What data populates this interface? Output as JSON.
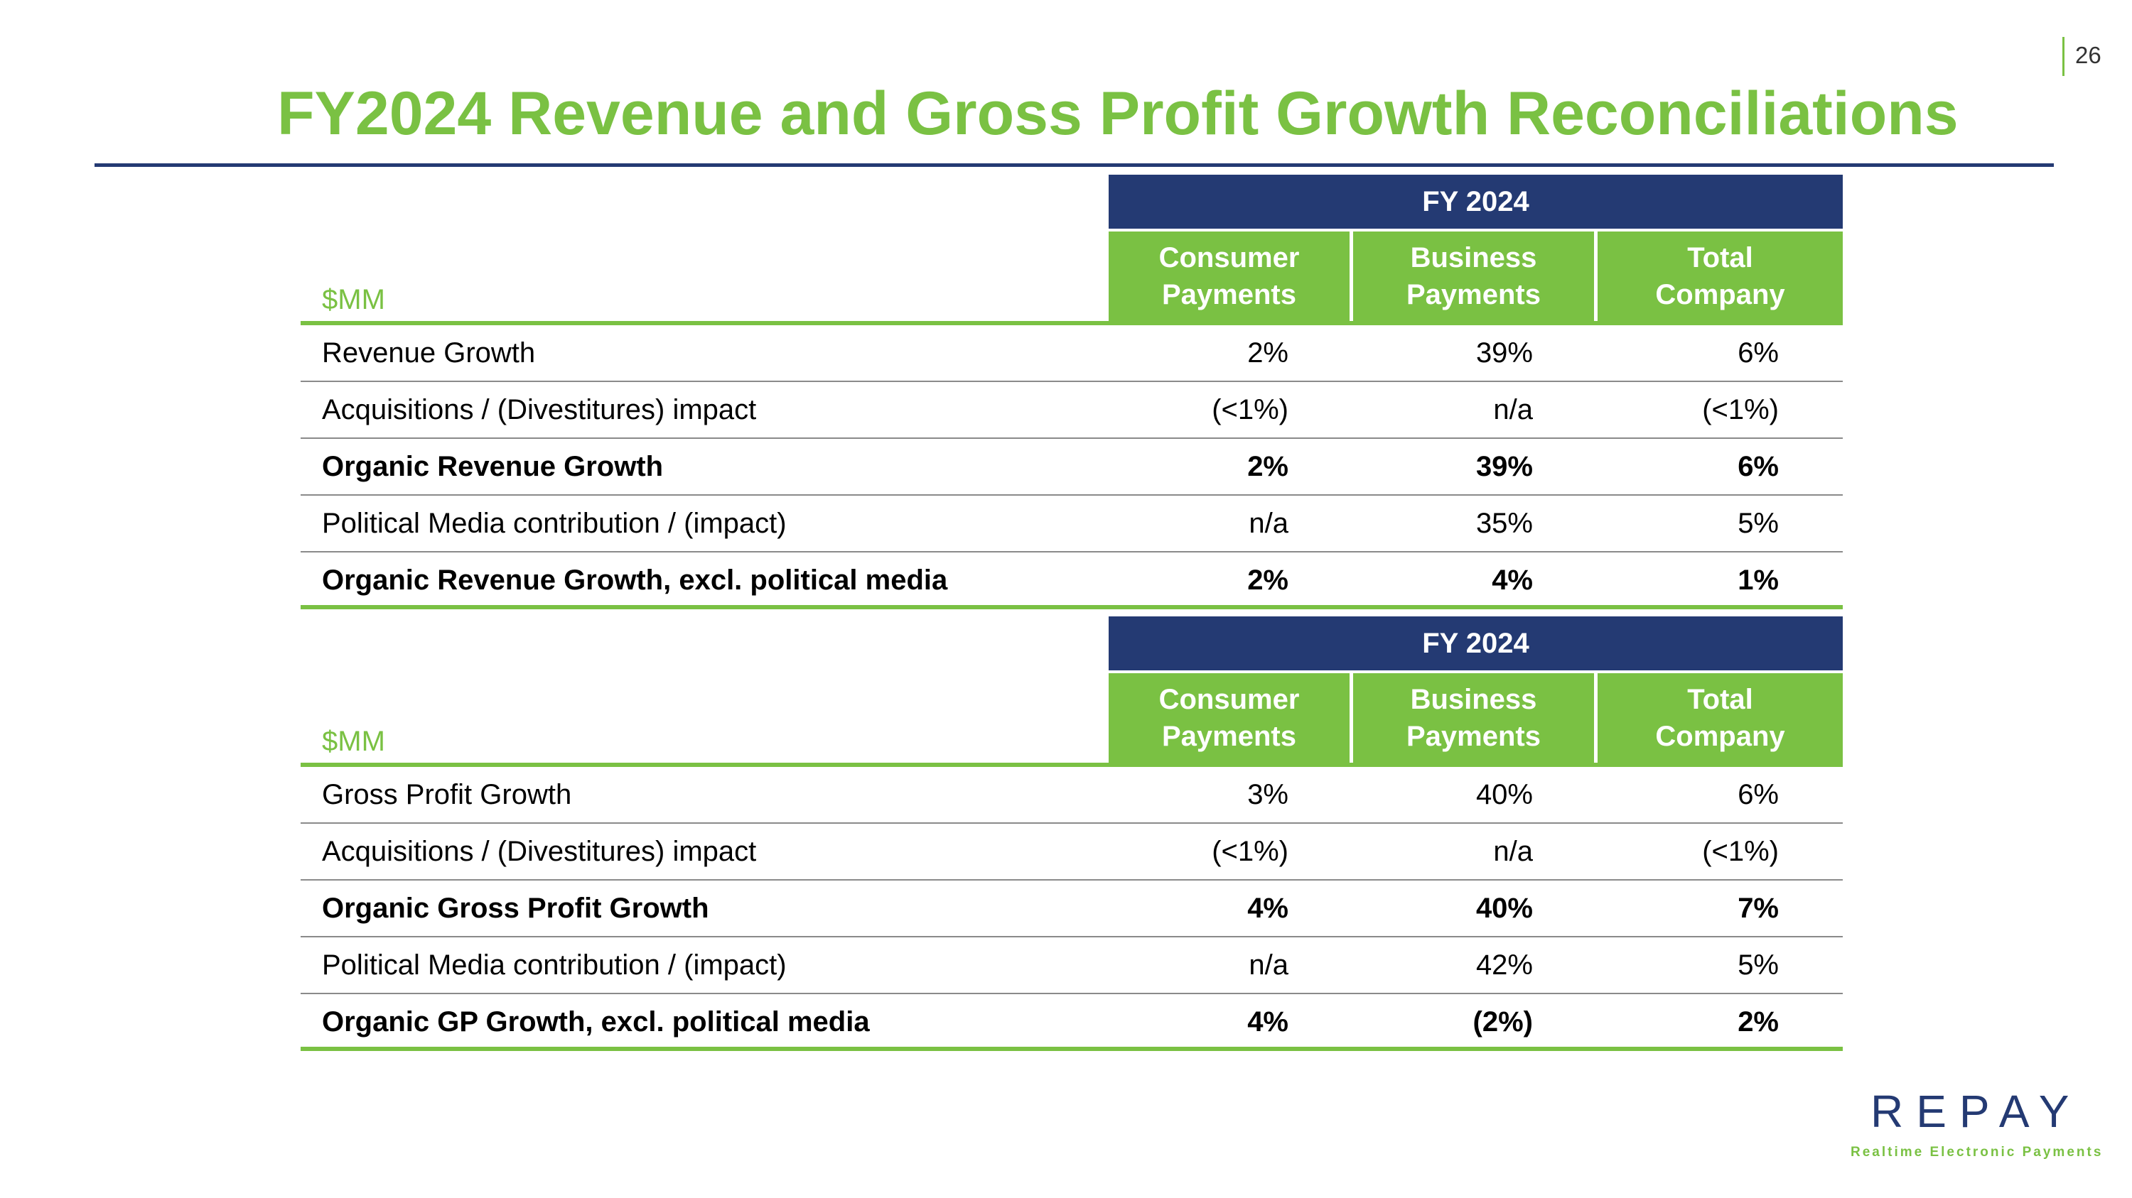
{
  "page_number": "26",
  "title": "FY2024 Revenue and Gross Profit Growth Reconciliations",
  "colors": {
    "green": "#7ac143",
    "navy": "#243a73"
  },
  "tables": [
    {
      "period": "FY 2024",
      "unit": "$MM",
      "columns": [
        "Consumer\nPayments",
        "Business\nPayments",
        "Total\nCompany"
      ],
      "rows": [
        {
          "label": "Revenue Growth",
          "values": [
            "2%",
            "39%",
            "6%"
          ],
          "bold": false
        },
        {
          "label": "Acquisitions / (Divestitures) impact",
          "values": [
            "(<1%)",
            "n/a",
            "(<1%)"
          ],
          "bold": false
        },
        {
          "label": "Organic Revenue Growth",
          "values": [
            "2%",
            "39%",
            "6%"
          ],
          "bold": true
        },
        {
          "label": "Political Media contribution / (impact)",
          "values": [
            "n/a",
            "35%",
            "5%"
          ],
          "bold": false
        },
        {
          "label": "Organic Revenue Growth, excl. political media",
          "values": [
            "2%",
            "4%",
            "1%"
          ],
          "bold": true
        }
      ]
    },
    {
      "period": "FY 2024",
      "unit": "$MM",
      "columns": [
        "Consumer\nPayments",
        "Business\nPayments",
        "Total\nCompany"
      ],
      "rows": [
        {
          "label": "Gross Profit Growth",
          "values": [
            "3%",
            "40%",
            "6%"
          ],
          "bold": false
        },
        {
          "label": "Acquisitions / (Divestitures) impact",
          "values": [
            "(<1%)",
            "n/a",
            "(<1%)"
          ],
          "bold": false
        },
        {
          "label": "Organic Gross Profit Growth",
          "values": [
            "4%",
            "40%",
            "7%"
          ],
          "bold": true
        },
        {
          "label": "Political Media contribution / (impact)",
          "values": [
            "n/a",
            "42%",
            "5%"
          ],
          "bold": false
        },
        {
          "label": "Organic GP Growth, excl. political media",
          "values": [
            "4%",
            "(2%)",
            "2%"
          ],
          "bold": true
        }
      ]
    }
  ],
  "logo": {
    "wordmark": "REPAY",
    "tagline": "Realtime Electronic Payments"
  }
}
